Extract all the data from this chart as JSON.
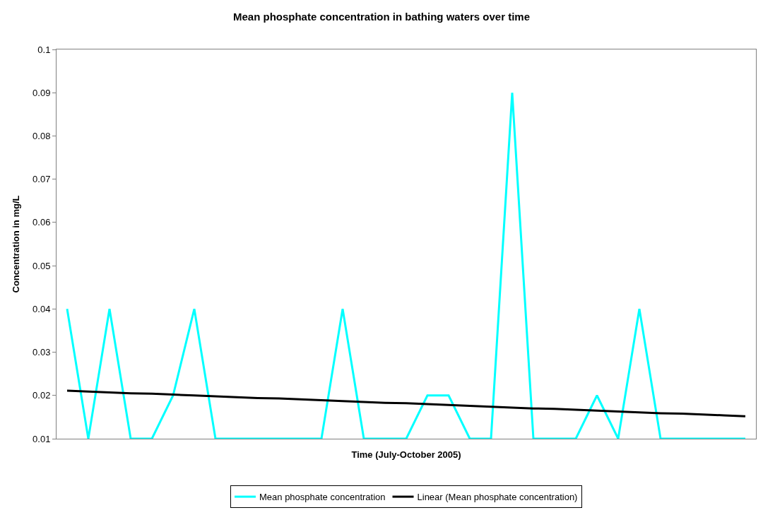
{
  "chart_data": {
    "type": "line",
    "title": "Mean phosphate concentration in bathing waters over time",
    "xlabel": "Time (July-October 2005)",
    "ylabel": "Concentration in mg/L",
    "categories": [
      null,
      null,
      null,
      null,
      null,
      null,
      null,
      null,
      null,
      null,
      null,
      null,
      null,
      null,
      null,
      null,
      null,
      null,
      null,
      null,
      null,
      null,
      null,
      null,
      null,
      null,
      null,
      null,
      null,
      null,
      null,
      null,
      null
    ],
    "series": [
      {
        "name": "Mean phosphate concentration",
        "color": "#00ffff",
        "values": [
          0.04,
          0.01,
          0.04,
          0.01,
          0.01,
          0.02,
          0.04,
          0.01,
          0.01,
          0.01,
          0.01,
          0.01,
          0.01,
          0.04,
          0.01,
          0.01,
          0.01,
          0.02,
          0.02,
          0.01,
          0.01,
          0.09,
          0.01,
          0.01,
          0.01,
          0.02,
          0.01,
          0.04,
          0.01,
          0.01,
          0.01,
          0.01,
          0.01
        ]
      },
      {
        "name": "Linear (Mean phosphate concentration)",
        "color": "#000000",
        "type": "line",
        "values": [
          0.0211,
          0.0209,
          0.0207,
          0.0205,
          0.0204,
          0.0202,
          0.02,
          0.0198,
          0.0196,
          0.0194,
          0.0193,
          0.0191,
          0.0189,
          0.0187,
          0.0185,
          0.0183,
          0.0182,
          0.018,
          0.0178,
          0.0176,
          0.0174,
          0.0172,
          0.017,
          0.0169,
          0.0167,
          0.0165,
          0.0163,
          0.0161,
          0.0159,
          0.0158,
          0.0156,
          0.0154,
          0.0152
        ]
      }
    ],
    "ylim": [
      0.01,
      0.1
    ],
    "yticks": [
      0.01,
      0.02,
      0.03,
      0.04,
      0.05,
      0.06,
      0.07,
      0.08,
      0.09,
      0.1
    ],
    "grid": false,
    "legend": "bottom",
    "marker": "none",
    "line_style": "solid"
  }
}
